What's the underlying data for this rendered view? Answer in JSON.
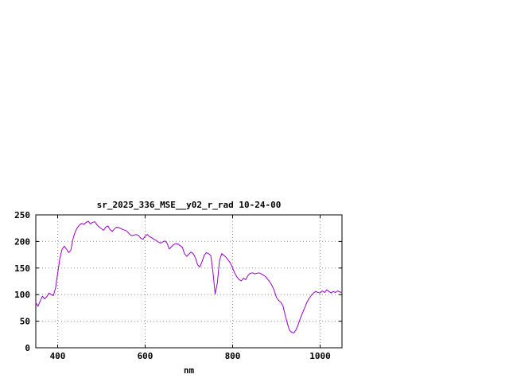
{
  "chart_data": {
    "type": "line",
    "title": "sr_2025_336_MSE__y02_r_rad 10-24-00",
    "xlabel": "nm",
    "ylabel": "",
    "xlim": [
      350,
      1050
    ],
    "ylim": [
      0,
      250
    ],
    "xticks": [
      400,
      600,
      800,
      1000
    ],
    "yticks": [
      0,
      50,
      100,
      150,
      200,
      250
    ],
    "grid": true,
    "legend_position": "none",
    "background_color": "#ffffff",
    "border_color": "#000000",
    "grid_color": "#909090",
    "series": [
      {
        "name": "sr_2025_336_MSE__y02_r_rad",
        "color": "#9900cc",
        "x": [
          350,
          355,
          360,
          365,
          370,
          375,
          380,
          385,
          390,
          395,
          400,
          405,
          410,
          415,
          420,
          425,
          430,
          435,
          440,
          445,
          450,
          455,
          460,
          465,
          470,
          475,
          480,
          485,
          490,
          495,
          500,
          505,
          510,
          515,
          520,
          525,
          530,
          535,
          540,
          545,
          550,
          555,
          560,
          565,
          570,
          575,
          580,
          585,
          590,
          595,
          600,
          605,
          610,
          615,
          620,
          625,
          630,
          635,
          640,
          645,
          650,
          655,
          660,
          665,
          670,
          675,
          680,
          685,
          690,
          695,
          700,
          705,
          710,
          715,
          720,
          725,
          730,
          735,
          740,
          745,
          750,
          755,
          760,
          765,
          770,
          775,
          780,
          785,
          790,
          795,
          800,
          805,
          810,
          815,
          820,
          825,
          830,
          835,
          840,
          845,
          850,
          855,
          860,
          865,
          870,
          875,
          880,
          885,
          890,
          895,
          900,
          905,
          910,
          915,
          920,
          925,
          930,
          935,
          940,
          945,
          950,
          955,
          960,
          965,
          970,
          975,
          980,
          985,
          990,
          995,
          1000,
          1005,
          1010,
          1015,
          1020,
          1025,
          1030,
          1035,
          1040,
          1045,
          1050
        ],
        "y": [
          85,
          78,
          88,
          97,
          92,
          96,
          103,
          100,
          98,
          112,
          140,
          168,
          185,
          191,
          186,
          179,
          183,
          205,
          218,
          226,
          231,
          234,
          232,
          236,
          238,
          233,
          236,
          237,
          231,
          227,
          224,
          221,
          227,
          229,
          222,
          219,
          224,
          227,
          226,
          224,
          222,
          221,
          218,
          213,
          211,
          212,
          213,
          211,
          206,
          204,
          210,
          213,
          209,
          207,
          204,
          202,
          199,
          197,
          199,
          201,
          197,
          186,
          190,
          194,
          196,
          195,
          192,
          189,
          177,
          172,
          176,
          180,
          177,
          169,
          156,
          152,
          162,
          174,
          179,
          177,
          174,
          142,
          101,
          122,
          164,
          177,
          174,
          170,
          165,
          159,
          150,
          140,
          133,
          128,
          126,
          131,
          128,
          136,
          140,
          141,
          139,
          140,
          141,
          139,
          137,
          134,
          129,
          124,
          117,
          108,
          95,
          89,
          86,
          79,
          62,
          46,
          33,
          29,
          28,
          34,
          44,
          56,
          66,
          76,
          86,
          93,
          99,
          103,
          106,
          104,
          103,
          107,
          104,
          109,
          106,
          103,
          106,
          104,
          107,
          105,
          104
        ]
      }
    ]
  }
}
